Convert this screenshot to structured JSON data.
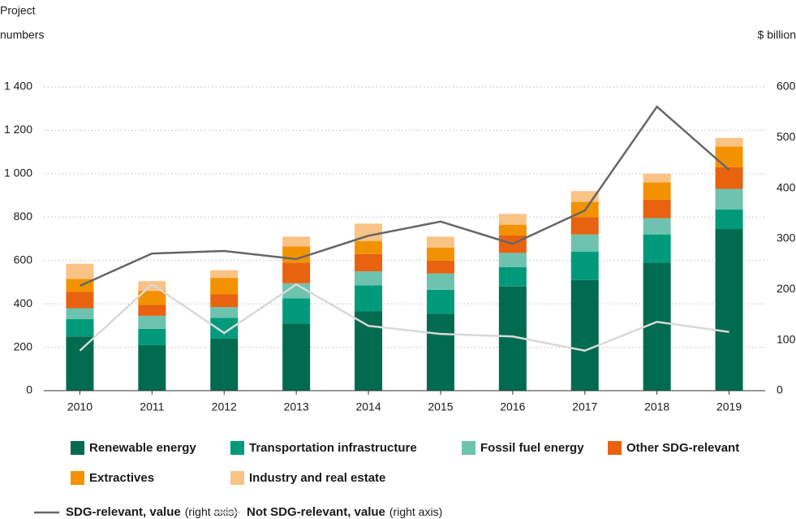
{
  "chart_data": {
    "type": "bar",
    "stacked": true,
    "ylabel": [
      "Project",
      "numbers"
    ],
    "y2label": "$ billion",
    "categories": [
      "2010",
      "2011",
      "2012",
      "2013",
      "2014",
      "2015",
      "2016",
      "2017",
      "2018",
      "2019"
    ],
    "series": [
      {
        "name": "Renewable energy",
        "color": "#006b4f",
        "values": [
          250,
          210,
          240,
          310,
          365,
          355,
          480,
          510,
          590,
          745
        ]
      },
      {
        "name": "Transportation infrastructure",
        "color": "#009a7b",
        "values": [
          80,
          75,
          95,
          115,
          120,
          110,
          90,
          130,
          130,
          90
        ]
      },
      {
        "name": "Fossil fuel energy",
        "color": "#6dc3ae",
        "values": [
          50,
          60,
          50,
          70,
          65,
          75,
          65,
          80,
          75,
          95
        ]
      },
      {
        "name": "Other SDG-relevant",
        "color": "#e8620f",
        "values": [
          75,
          50,
          60,
          95,
          80,
          60,
          80,
          80,
          85,
          100
        ]
      },
      {
        "name": "Extractives",
        "color": "#f39200",
        "values": [
          60,
          65,
          75,
          75,
          60,
          60,
          50,
          70,
          80,
          95
        ]
      },
      {
        "name": "Industry and real estate",
        "color": "#f9c386",
        "values": [
          70,
          45,
          35,
          45,
          80,
          50,
          50,
          50,
          40,
          40
        ]
      },
      {
        "name": "SDG-relevant, value",
        "legend_note": "(right axis)",
        "type": "line",
        "axis": "y2",
        "color": "#666666",
        "values": [
          207,
          271,
          276,
          260,
          306,
          334,
          290,
          356,
          561,
          436
        ]
      },
      {
        "name": "Not SDG-relevant, value",
        "legend_note": "(right axis)",
        "type": "line",
        "axis": "y2",
        "color": "#d9d9d9",
        "values": [
          79,
          210,
          114,
          210,
          128,
          112,
          107,
          79,
          136,
          116
        ]
      }
    ],
    "ylim": [
      0,
      1400
    ],
    "yticks": [
      0,
      200,
      400,
      600,
      800,
      {
        "value": 1000,
        "label": "1 000"
      },
      {
        "value": 1200,
        "label": "1 200"
      },
      {
        "value": 1400,
        "label": "1 400"
      }
    ],
    "y2lim": [
      0,
      600
    ],
    "y2ticks": [
      0,
      100,
      200,
      300,
      400,
      500,
      600
    ],
    "grid": true
  }
}
